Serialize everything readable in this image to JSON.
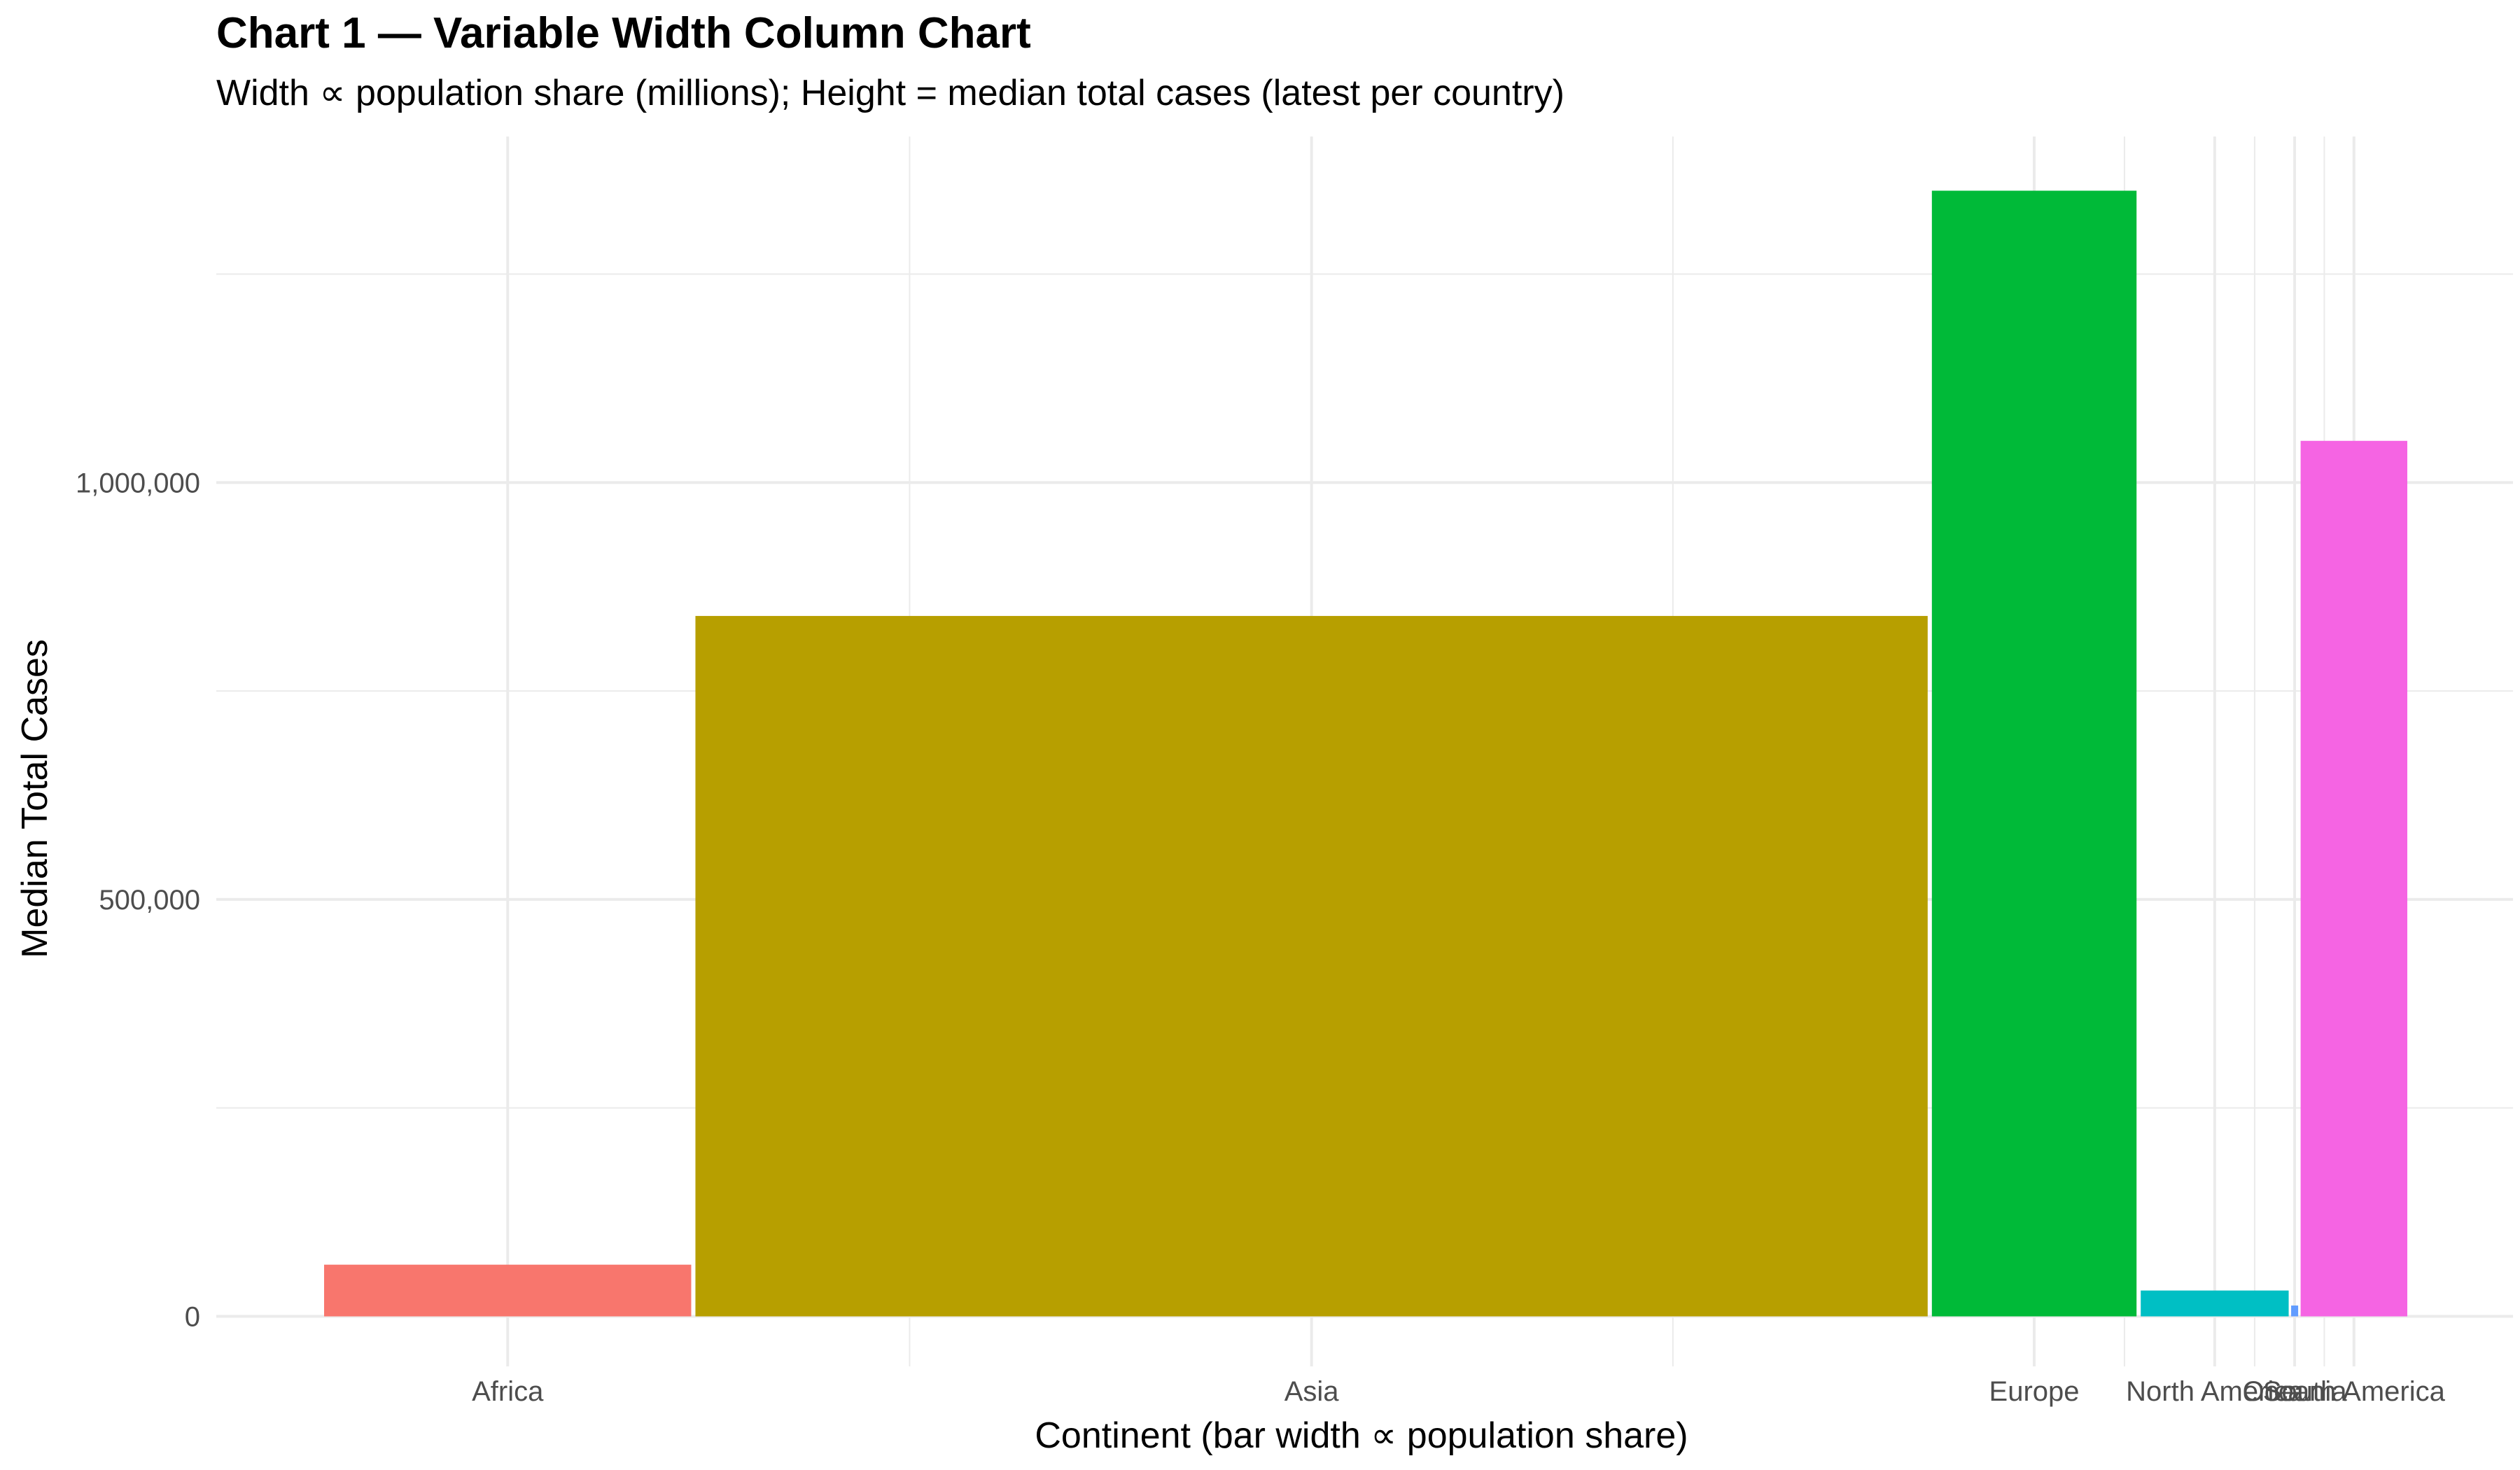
{
  "chart_data": {
    "type": "bar",
    "variable_width": true,
    "title": "Chart 1 — Variable Width Column Chart",
    "subtitle": "Width ∝ population share (millions); Height = median total cases (latest per country)",
    "xlabel": "Continent (bar width ∝ population share)",
    "ylabel": "Median Total Cases",
    "categories": [
      "Africa",
      "Asia",
      "Europe",
      "North America",
      "Oceania",
      "South America"
    ],
    "widths": [
      1440,
      4795,
      810,
      590,
      30,
      430
    ],
    "values": [
      62000,
      840000,
      1350000,
      31000,
      13000,
      1050000
    ],
    "colors": [
      "#F8766D",
      "#B79F00",
      "#00BA38",
      "#00BFC4",
      "#619CFF",
      "#F564E3"
    ],
    "ylim": [
      -60000,
      1415000
    ],
    "yticks": [
      0,
      500000,
      1000000
    ],
    "yticklabels": [
      "0",
      "500,000",
      "1,000,000"
    ],
    "grid": true,
    "legend": "none"
  }
}
